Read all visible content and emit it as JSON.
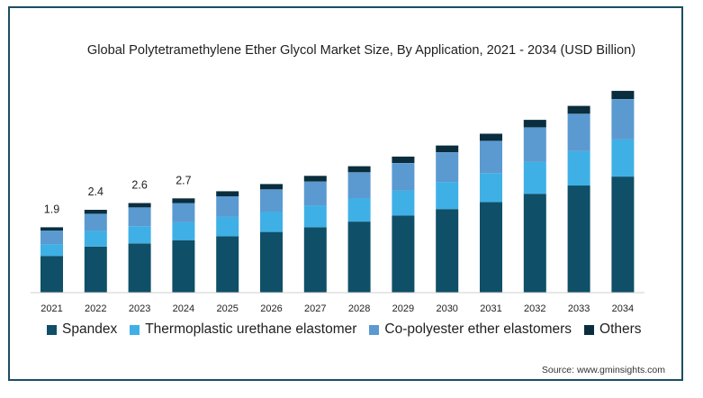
{
  "chart_data": {
    "type": "bar",
    "stacked": true,
    "title": "Global Polytetramethylene Ether Glycol Market Size, By Application, 2021 - 2034 (USD Billion)",
    "categories": [
      "2021",
      "2022",
      "2023",
      "2024",
      "2025",
      "2026",
      "2027",
      "2028",
      "2029",
      "2030",
      "2031",
      "2032",
      "2033",
      "2034"
    ],
    "series": [
      {
        "name": "Spandex",
        "color": "#0f4f68",
        "values": [
          1.03,
          1.29,
          1.38,
          1.47,
          1.58,
          1.7,
          1.83,
          1.99,
          2.16,
          2.34,
          2.54,
          2.77,
          3.0,
          3.25
        ]
      },
      {
        "name": "Thermoplastic urethane elastomer",
        "color": "#3fb0e6",
        "values": [
          0.33,
          0.44,
          0.48,
          0.5,
          0.54,
          0.57,
          0.61,
          0.66,
          0.7,
          0.76,
          0.81,
          0.89,
          0.96,
          1.04
        ]
      },
      {
        "name": "Co-polyester ether elastomers",
        "color": "#5a9ad0",
        "values": [
          0.38,
          0.48,
          0.53,
          0.54,
          0.58,
          0.62,
          0.67,
          0.72,
          0.77,
          0.83,
          0.9,
          0.97,
          1.05,
          1.13
        ]
      },
      {
        "name": "Others",
        "color": "#0a2e3e",
        "values": [
          0.09,
          0.11,
          0.12,
          0.13,
          0.14,
          0.15,
          0.16,
          0.17,
          0.18,
          0.19,
          0.2,
          0.21,
          0.22,
          0.23
        ]
      }
    ],
    "data_labels": [
      "1.9",
      "2.4",
      "2.6",
      "2.7",
      "",
      "",
      "",
      "",
      "",
      "",
      "",
      "",
      "",
      ""
    ],
    "ylim": [
      0,
      5.8
    ],
    "grid": false,
    "legend_position": "bottom"
  },
  "source": "Source: www.gminsights.com"
}
